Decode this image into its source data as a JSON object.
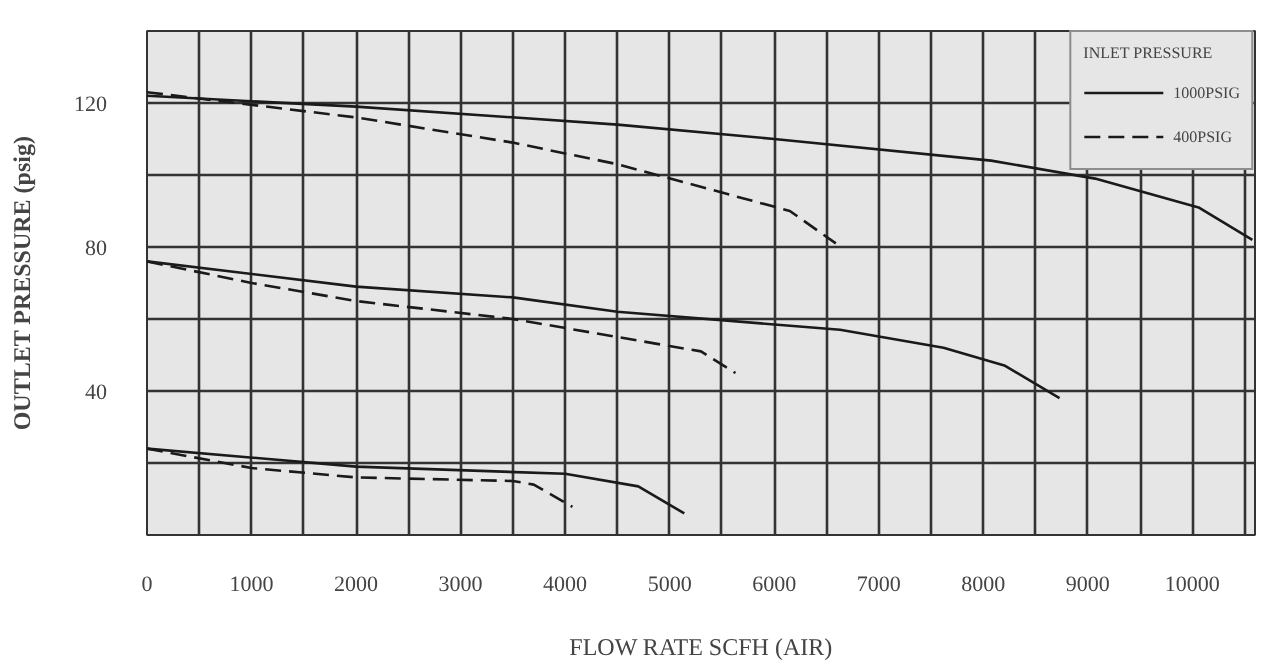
{
  "chart_data": {
    "type": "line",
    "xlabel": "FLOW RATE SCFH (AIR)",
    "ylabel": "OUTLET PRESSURE (psig)",
    "legend_title": "INLET PRESSURE",
    "xlim": [
      0,
      10600
    ],
    "ylim": [
      0,
      140
    ],
    "xticks": [
      0,
      {
        "value": 500,
        "label": null
      },
      1000,
      {
        "value": 1500,
        "label": null
      },
      2000,
      {
        "value": 2500,
        "label": null
      },
      3000,
      {
        "value": 3500,
        "label": null
      },
      4000,
      {
        "value": 4500,
        "label": null
      },
      5000,
      {
        "value": 5500,
        "label": null
      },
      6000,
      {
        "value": 6500,
        "label": null
      },
      7000,
      {
        "value": 7500,
        "label": null
      },
      8000,
      {
        "value": 8500,
        "label": null
      },
      9000,
      {
        "value": 9500,
        "label": null
      },
      10000,
      {
        "value": 10500,
        "label": null
      }
    ],
    "yticks": [
      {
        "value": 20,
        "label": null
      },
      40,
      {
        "value": 60,
        "label": null
      },
      80,
      {
        "value": 100,
        "label": null
      },
      120,
      {
        "value": 140,
        "label": null
      }
    ],
    "grid": true,
    "legend": "top right",
    "marker": "none",
    "series": [
      {
        "name": "1000PSIG",
        "color": "#1a1a1a",
        "line_style": "solid",
        "x": [
          0,
          2000,
          4500,
          6000,
          8075,
          9070,
          10060,
          10575
        ],
        "values": [
          122,
          119,
          114,
          110,
          104,
          99,
          91,
          82
        ]
      },
      {
        "name": "400PSIG",
        "color": "#1a1a1a",
        "line_style": "dashed",
        "x": [
          0,
          2000,
          3500,
          4500,
          6150,
          6590
        ],
        "values": [
          123,
          116,
          109,
          103,
          90,
          81
        ]
      },
      {
        "color": "#1a1a1a",
        "line_style": "solid",
        "x": [
          0,
          2000,
          3500,
          4500,
          6630,
          7620,
          8210,
          8730
        ],
        "values": [
          76,
          69,
          66,
          62,
          57,
          52,
          47,
          38
        ]
      },
      {
        "color": "#1a1a1a",
        "line_style": "dashed",
        "x": [
          0,
          1000,
          2000,
          3500,
          4500,
          5300,
          5630
        ],
        "values": [
          76,
          70,
          65,
          60,
          55,
          51,
          45
        ]
      },
      {
        "color": "#1a1a1a",
        "line_style": "solid",
        "x": [
          0,
          2000,
          4000,
          4700,
          5140
        ],
        "values": [
          24,
          19,
          17,
          13.5,
          6
        ]
      },
      {
        "color": "#1a1a1a",
        "line_style": "dashed",
        "x": [
          0,
          1000,
          2000,
          3500,
          3700,
          4070
        ],
        "values": [
          24,
          18.6,
          16,
          15,
          14,
          7.8
        ]
      }
    ]
  }
}
